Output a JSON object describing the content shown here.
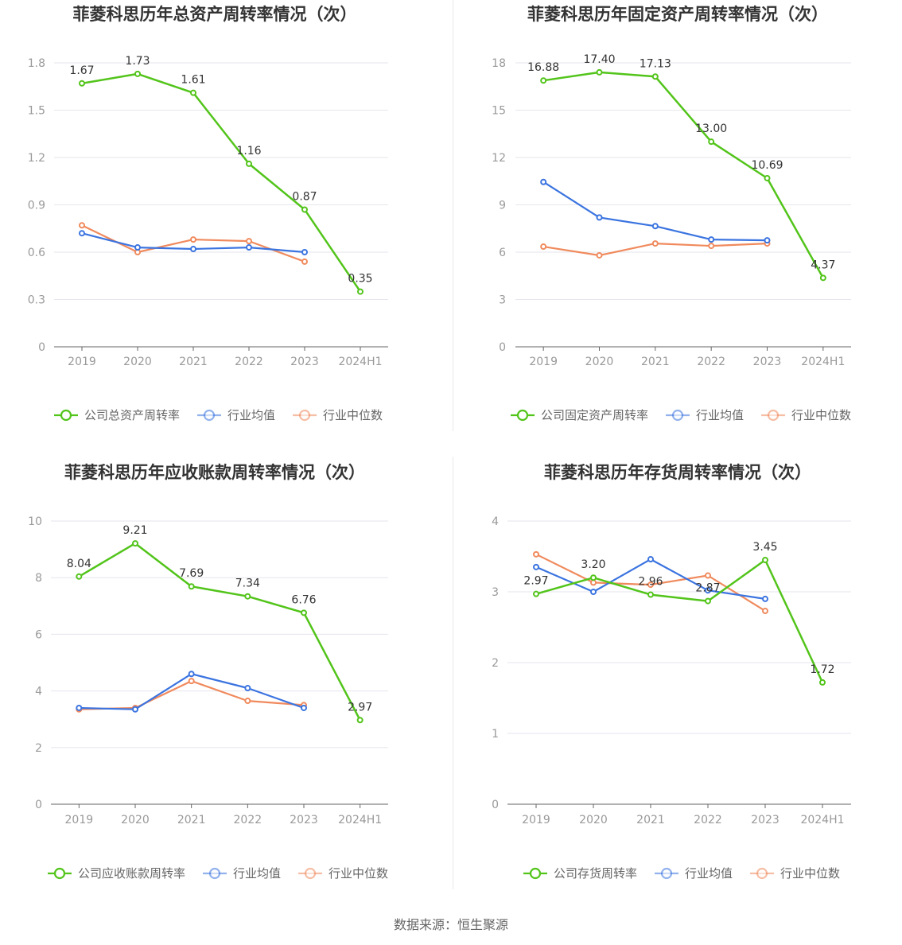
{
  "source": "数据来源：恒生聚源",
  "colors": {
    "company": "#52c41a",
    "industry_avg": "#3b74e0",
    "industry_median": "#f08a5d",
    "grid": "#e6e6ee",
    "axis": "#666666",
    "divider": "#e8e8e8",
    "legend_text": "#666666"
  },
  "chart_data": [
    {
      "type": "line",
      "title": "菲菱科思历年总资产周转率情况（次）",
      "categories": [
        "2019",
        "2020",
        "2021",
        "2022",
        "2023",
        "2024H1"
      ],
      "ylim": [
        0,
        1.8
      ],
      "yticks": [
        "0",
        "0.3",
        "0.6",
        "0.9",
        "1.2",
        "1.5",
        "1.8"
      ],
      "ytick_values": [
        0,
        0.3,
        0.6,
        0.9,
        1.2,
        1.5,
        1.8
      ],
      "series": [
        {
          "name": "公司总资产周转率",
          "role": "company",
          "values": [
            1.67,
            1.73,
            1.61,
            1.16,
            0.87,
            0.35
          ],
          "labels": [
            "1.67",
            "1.73",
            "1.61",
            "1.16",
            "0.87",
            "0.35"
          ]
        },
        {
          "name": "行业均值",
          "role": "industry_avg",
          "values": [
            0.72,
            0.63,
            0.62,
            0.63,
            0.6,
            null
          ]
        },
        {
          "name": "行业中位数",
          "role": "industry_median",
          "values": [
            0.77,
            0.6,
            0.68,
            0.67,
            0.54,
            null
          ]
        }
      ]
    },
    {
      "type": "line",
      "title": "菲菱科思历年固定资产周转率情况（次）",
      "categories": [
        "2019",
        "2020",
        "2021",
        "2022",
        "2023",
        "2024H1"
      ],
      "ylim": [
        0,
        18
      ],
      "yticks": [
        "0",
        "3",
        "6",
        "9",
        "12",
        "15",
        "18"
      ],
      "ytick_values": [
        0,
        3,
        6,
        9,
        12,
        15,
        18
      ],
      "series": [
        {
          "name": "公司固定资产周转率",
          "role": "company",
          "values": [
            16.88,
            17.4,
            17.13,
            13.0,
            10.69,
            4.37
          ],
          "labels": [
            "16.88",
            "17.40",
            "17.13",
            "13.00",
            "10.69",
            "4.37"
          ]
        },
        {
          "name": "行业均值",
          "role": "industry_avg",
          "values": [
            10.45,
            8.2,
            7.65,
            6.8,
            6.75,
            null
          ]
        },
        {
          "name": "行业中位数",
          "role": "industry_median",
          "values": [
            6.35,
            5.8,
            6.55,
            6.4,
            6.55,
            null
          ]
        }
      ]
    },
    {
      "type": "line",
      "title": "菲菱科思历年应收账款周转率情况（次）",
      "categories": [
        "2019",
        "2020",
        "2021",
        "2022",
        "2023",
        "2024H1"
      ],
      "ylim": [
        0,
        10
      ],
      "yticks": [
        "0",
        "2",
        "4",
        "6",
        "8",
        "10"
      ],
      "ytick_values": [
        0,
        2,
        4,
        6,
        8,
        10
      ],
      "series": [
        {
          "name": "公司应收账款周转率",
          "role": "company",
          "values": [
            8.04,
            9.21,
            7.69,
            7.34,
            6.76,
            2.97
          ],
          "labels": [
            "8.04",
            "9.21",
            "7.69",
            "7.34",
            "6.76",
            "2.97"
          ]
        },
        {
          "name": "行业均值",
          "role": "industry_avg",
          "values": [
            3.4,
            3.35,
            4.6,
            4.1,
            3.4,
            null
          ]
        },
        {
          "name": "行业中位数",
          "role": "industry_median",
          "values": [
            3.35,
            3.4,
            4.35,
            3.65,
            3.5,
            null
          ]
        }
      ]
    },
    {
      "type": "line",
      "title": "菲菱科思历年存货周转率情况（次）",
      "categories": [
        "2019",
        "2020",
        "2021",
        "2022",
        "2023",
        "2024H1"
      ],
      "ylim": [
        0,
        4
      ],
      "yticks": [
        "0",
        "1",
        "2",
        "3",
        "4"
      ],
      "ytick_values": [
        0,
        1,
        2,
        3,
        4
      ],
      "series": [
        {
          "name": "公司存货周转率",
          "role": "company",
          "values": [
            2.97,
            3.2,
            2.96,
            2.87,
            3.45,
            1.72
          ],
          "labels": [
            "2.97",
            "3.20",
            "2.96",
            "2.87",
            "3.45",
            "1.72"
          ]
        },
        {
          "name": "行业均值",
          "role": "industry_avg",
          "values": [
            3.35,
            3.0,
            3.46,
            3.02,
            2.9,
            null
          ]
        },
        {
          "name": "行业中位数",
          "role": "industry_median",
          "values": [
            3.53,
            3.13,
            3.1,
            3.23,
            2.73,
            null
          ]
        }
      ]
    }
  ]
}
